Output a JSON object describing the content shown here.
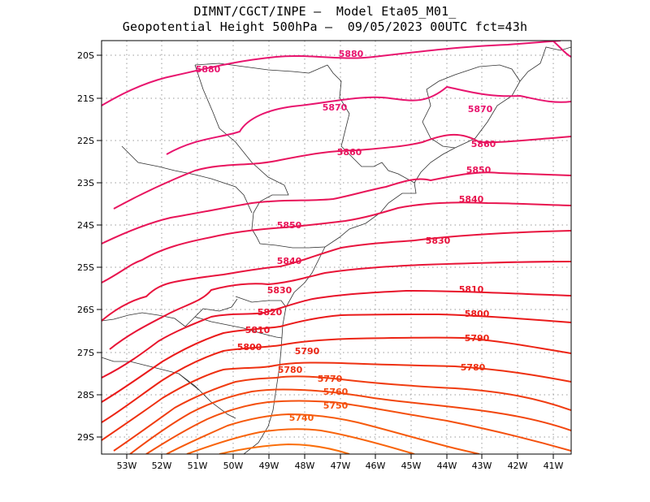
{
  "header": {
    "line1": "DIMNT/CGCT/INPE –  Model Eta05_M01_",
    "line2": "Geopotential Height 500hPa –  09/05/2023 00UTC fct=43h"
  },
  "axes": {
    "lat_labels": [
      "20S",
      "21S",
      "22S",
      "23S",
      "24S",
      "25S",
      "26S",
      "27S",
      "28S",
      "29S"
    ],
    "lon_labels": [
      "53W",
      "52W",
      "51W",
      "50W",
      "49W",
      "48W",
      "47W",
      "46W",
      "45W",
      "44W",
      "43W",
      "42W",
      "41W"
    ]
  },
  "contours": [
    {
      "value": 5880,
      "label": "5880",
      "color": "#e8146e"
    },
    {
      "value": 5870,
      "label": "5870",
      "color": "#e8146e"
    },
    {
      "value": 5860,
      "label": "5860",
      "color": "#e8145e"
    },
    {
      "value": 5850,
      "label": "5850",
      "color": "#e81458"
    },
    {
      "value": 5840,
      "label": "5840",
      "color": "#e8144e"
    },
    {
      "value": 5830,
      "label": "5830",
      "color": "#e8143e"
    },
    {
      "value": 5820,
      "label": "5820",
      "color": "#e81436"
    },
    {
      "value": 5810,
      "label": "5810",
      "color": "#e8142a"
    },
    {
      "value": 5800,
      "label": "5800",
      "color": "#ea1a1a"
    },
    {
      "value": 5790,
      "label": "5790",
      "color": "#ec2414"
    },
    {
      "value": 5780,
      "label": "5780",
      "color": "#ee3010"
    },
    {
      "value": 5770,
      "label": "5770",
      "color": "#f03c10"
    },
    {
      "value": 5760,
      "label": "5760",
      "color": "#f2460e"
    },
    {
      "value": 5750,
      "label": "5750",
      "color": "#f4500e"
    },
    {
      "value": 5740,
      "label": "5740",
      "color": "#f65a0c"
    },
    {
      "value": 5730,
      "label": "",
      "color": "#f8640c"
    },
    {
      "value": 5720,
      "label": "",
      "color": "#fa6e0a"
    }
  ]
}
